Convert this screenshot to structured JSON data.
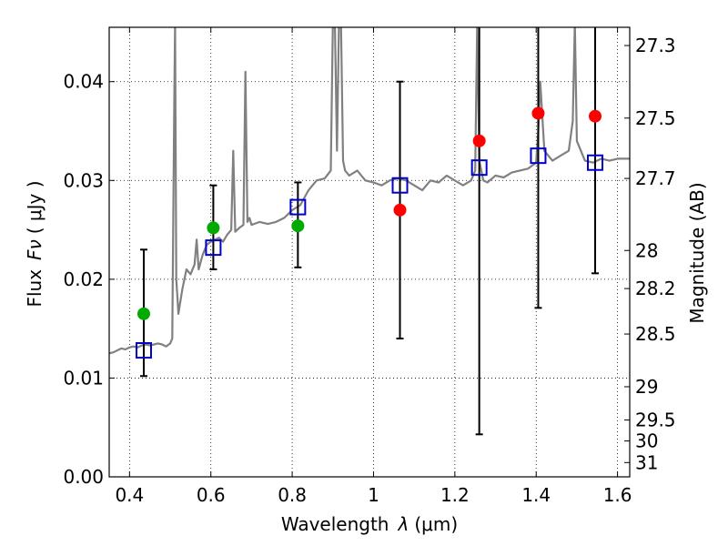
{
  "chart_data": {
    "type": "scatter",
    "xlabel": "Wavelength",
    "xlabel_symbol": "λ",
    "xlabel_unit": "(μm)",
    "ylabel": "Flux",
    "ylabel_symbol": "Fν",
    "ylabel_unit": "( μJy )",
    "y2label": "Magnitude (AB)",
    "xlim": [
      0.35,
      1.63
    ],
    "ylim": [
      0.0,
      0.0455
    ],
    "grid": true,
    "x_ticks": [
      0.4,
      0.6,
      0.8,
      1.0,
      1.2,
      1.4,
      1.6
    ],
    "x_tick_labels": [
      "0.4",
      "0.6",
      "0.8",
      "1",
      "1.2",
      "1.4",
      "1.6"
    ],
    "y_ticks": [
      0.0,
      0.01,
      0.02,
      0.03,
      0.04
    ],
    "y_tick_labels": [
      "0.00",
      "0.01",
      "0.02",
      "0.03",
      "0.04"
    ],
    "y2_ticks": [
      27.3,
      27.5,
      27.7,
      28,
      28.2,
      28.5,
      29,
      29.5,
      30,
      31
    ],
    "y2_tick_labels": [
      "27.3",
      "27.5",
      "27.7",
      "28",
      "28.2",
      "28.5",
      "29",
      "29.5",
      "30",
      "31"
    ],
    "observed_points": [
      {
        "x": 0.435,
        "y": 0.0165,
        "yerr_low": 0.0102,
        "yerr_high": 0.023,
        "color": "#00aa00"
      },
      {
        "x": 0.606,
        "y": 0.0252,
        "yerr_low": 0.021,
        "yerr_high": 0.0295,
        "color": "#00aa00"
      },
      {
        "x": 0.814,
        "y": 0.0254,
        "yerr_low": 0.0212,
        "yerr_high": 0.0298,
        "color": "#00aa00"
      },
      {
        "x": 1.065,
        "y": 0.027,
        "yerr_low": 0.014,
        "yerr_high": 0.04,
        "color": "#ff0000"
      },
      {
        "x": 1.26,
        "y": 0.034,
        "yerr_low": 0.0043,
        "yerr_high": 0.046,
        "color": "#ff0000"
      },
      {
        "x": 1.405,
        "y": 0.0368,
        "yerr_low": 0.0171,
        "yerr_high": 0.046,
        "color": "#ff0000"
      },
      {
        "x": 1.545,
        "y": 0.0365,
        "yerr_low": 0.0206,
        "yerr_high": 0.046,
        "color": "#ff0000"
      }
    ],
    "model_points": [
      {
        "x": 0.435,
        "y": 0.0128
      },
      {
        "x": 0.606,
        "y": 0.0232
      },
      {
        "x": 0.814,
        "y": 0.0273
      },
      {
        "x": 1.065,
        "y": 0.0295
      },
      {
        "x": 1.26,
        "y": 0.0313
      },
      {
        "x": 1.405,
        "y": 0.0325
      },
      {
        "x": 1.545,
        "y": 0.0318
      }
    ],
    "model_spectrum": {
      "color": "#808080",
      "x": [
        0.35,
        0.36,
        0.37,
        0.38,
        0.39,
        0.4,
        0.41,
        0.42,
        0.43,
        0.44,
        0.45,
        0.46,
        0.47,
        0.48,
        0.49,
        0.5,
        0.505,
        0.51,
        0.512,
        0.515,
        0.518,
        0.52,
        0.53,
        0.54,
        0.55,
        0.56,
        0.565,
        0.57,
        0.58,
        0.59,
        0.6,
        0.61,
        0.62,
        0.63,
        0.64,
        0.65,
        0.655,
        0.66,
        0.67,
        0.68,
        0.685,
        0.69,
        0.695,
        0.7,
        0.72,
        0.74,
        0.76,
        0.78,
        0.8,
        0.82,
        0.84,
        0.86,
        0.88,
        0.895,
        0.9,
        0.905,
        0.91,
        0.915,
        0.92,
        0.925,
        0.93,
        0.94,
        0.96,
        0.98,
        1.0,
        1.02,
        1.04,
        1.06,
        1.08,
        1.1,
        1.12,
        1.14,
        1.16,
        1.18,
        1.2,
        1.22,
        1.24,
        1.25,
        1.255,
        1.26,
        1.27,
        1.28,
        1.3,
        1.32,
        1.34,
        1.36,
        1.38,
        1.4,
        1.405,
        1.41,
        1.42,
        1.44,
        1.46,
        1.48,
        1.49,
        1.495,
        1.5,
        1.52,
        1.54,
        1.56,
        1.58,
        1.6,
        1.63
      ],
      "y": [
        0.0125,
        0.0126,
        0.0128,
        0.013,
        0.0129,
        0.0131,
        0.0132,
        0.0131,
        0.0133,
        0.0134,
        0.0133,
        0.0134,
        0.0135,
        0.0134,
        0.0132,
        0.0135,
        0.014,
        0.038,
        0.046,
        0.02,
        0.018,
        0.0165,
        0.019,
        0.021,
        0.0205,
        0.0215,
        0.024,
        0.021,
        0.0225,
        0.0235,
        0.0238,
        0.024,
        0.0242,
        0.0238,
        0.0245,
        0.025,
        0.033,
        0.0248,
        0.0252,
        0.0255,
        0.041,
        0.0258,
        0.0262,
        0.0255,
        0.0258,
        0.0256,
        0.0258,
        0.0262,
        0.027,
        0.0275,
        0.029,
        0.03,
        0.0302,
        0.031,
        0.046,
        0.046,
        0.033,
        0.046,
        0.046,
        0.032,
        0.031,
        0.0305,
        0.031,
        0.03,
        0.0298,
        0.0295,
        0.03,
        0.0302,
        0.03,
        0.0295,
        0.029,
        0.03,
        0.0298,
        0.0305,
        0.03,
        0.0295,
        0.03,
        0.031,
        0.046,
        0.032,
        0.03,
        0.0298,
        0.0305,
        0.0303,
        0.0308,
        0.031,
        0.0312,
        0.0318,
        0.035,
        0.04,
        0.033,
        0.032,
        0.0325,
        0.033,
        0.036,
        0.046,
        0.034,
        0.032,
        0.0318,
        0.0322,
        0.032,
        0.0322,
        0.0322
      ]
    }
  }
}
